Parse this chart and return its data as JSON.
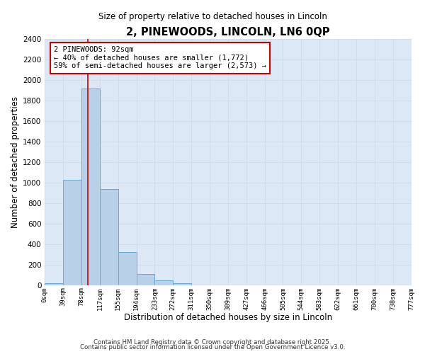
{
  "title": "2, PINEWOODS, LINCOLN, LN6 0QP",
  "subtitle": "Size of property relative to detached houses in Lincoln",
  "xlabel": "Distribution of detached houses by size in Lincoln",
  "ylabel": "Number of detached properties",
  "bar_values": [
    20,
    1030,
    1920,
    940,
    320,
    110,
    50,
    20,
    0,
    0,
    0,
    0,
    0,
    0,
    0,
    0,
    0,
    0,
    0,
    0
  ],
  "bin_labels": [
    "0sqm",
    "39sqm",
    "78sqm",
    "117sqm",
    "155sqm",
    "194sqm",
    "233sqm",
    "272sqm",
    "311sqm",
    "350sqm",
    "389sqm",
    "427sqm",
    "466sqm",
    "505sqm",
    "544sqm",
    "583sqm",
    "622sqm",
    "661sqm",
    "700sqm",
    "738sqm",
    "777sqm"
  ],
  "bar_color": "#b8d0e8",
  "bar_edge_color": "#6aaad4",
  "vline_x": 2.36,
  "vline_color": "#cc0000",
  "annotation_text": "2 PINEWOODS: 92sqm\n← 40% of detached houses are smaller (1,772)\n59% of semi-detached houses are larger (2,573) →",
  "ylim": [
    0,
    2400
  ],
  "yticks": [
    0,
    200,
    400,
    600,
    800,
    1000,
    1200,
    1400,
    1600,
    1800,
    2000,
    2200,
    2400
  ],
  "footer_line1": "Contains HM Land Registry data © Crown copyright and database right 2025.",
  "footer_line2": "Contains public sector information licensed under the Open Government Licence v3.0.",
  "background_color": "#ffffff",
  "ax_background": "#dce8f5",
  "grid_color": "#c8d8e8"
}
